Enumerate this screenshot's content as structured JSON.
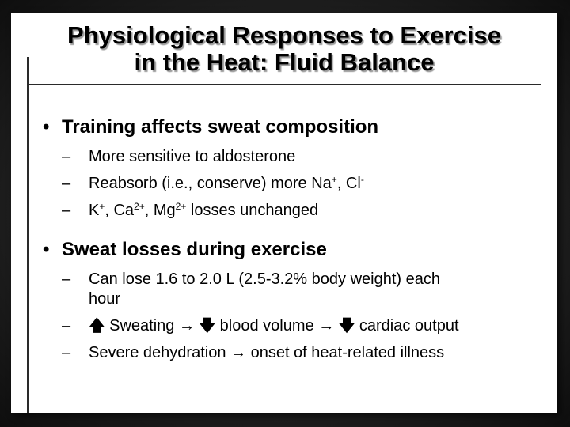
{
  "slide": {
    "title_line1": "Physiological Responses to Exercise",
    "title_line2": "in the Heat: Fluid Balance"
  },
  "bullets": [
    {
      "text": "Training affects sweat composition",
      "subs": {
        "s1": "More sensitive to aldosterone",
        "s2_pre": "Reabsorb (i.e., conserve) more Na",
        "s2_sup1": "+",
        "s2_mid": ", Cl",
        "s2_sup2": "-",
        "s3_k": "K",
        "s3_ksup": "+",
        "s3_ca": ", Ca",
        "s3_casup": "2+",
        "s3_mg": ", Mg",
        "s3_mgsup": "2+",
        "s3_rest": " losses unchanged"
      }
    },
    {
      "text": "Sweat losses during exercise",
      "subs": {
        "s1_line1": "Can lose 1.6 to 2.0 L (2.5-3.2% body weight) each",
        "s1_line2": "hour",
        "s2_a": "Sweating",
        "s2_b": "blood volume",
        "s2_c": "cardiac output",
        "s3_a": "Severe dehydration",
        "s3_b": "onset of heat-related illness"
      }
    }
  ],
  "dash": "–",
  "icons": {
    "up": "up-arrow-icon",
    "down": "down-arrow-icon",
    "right": "right-arrow-icon"
  }
}
